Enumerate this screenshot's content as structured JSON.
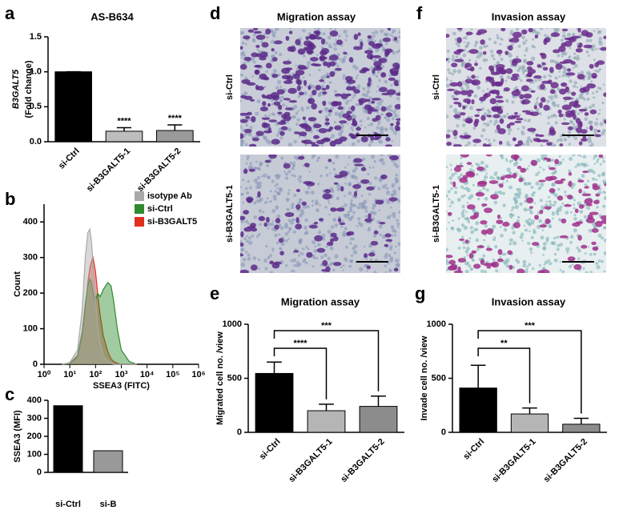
{
  "chart_data": [
    {
      "type": "bar",
      "panel": "a",
      "title": "AS-B634",
      "ylabel": [
        "B3GALT5",
        "(Fold change)"
      ],
      "categories": [
        "si-Ctrl",
        "si-B3GALT5-1",
        "si-B3GALT5-2"
      ],
      "values": [
        1.0,
        0.15,
        0.16
      ],
      "errors": [
        0,
        0.05,
        0.08
      ],
      "colors": [
        "#000000",
        "#bdbdbd",
        "#9a9a9a"
      ],
      "annotations": [
        null,
        "****",
        "****"
      ],
      "annotation_style": "above",
      "ylim": [
        0,
        1.5
      ],
      "yticks": [
        {
          "value": 0,
          "label": "0.0"
        },
        {
          "value": 0.5,
          "label": "0.5"
        },
        {
          "value": 1,
          "label": "1.0"
        },
        {
          "value": 1.5,
          "label": "1.5"
        }
      ],
      "category_label_rotation": -45
    },
    {
      "type": "histogram",
      "panel": "b",
      "xlabel": "SSEA3 (FITC)",
      "ylabel": "Count",
      "xscale": "log",
      "legend": "upper right",
      "x": [
        5,
        10,
        20,
        30,
        40,
        50,
        60,
        70,
        80,
        100,
        120,
        150,
        200,
        300,
        400,
        500,
        700,
        1000,
        2000,
        4000
      ],
      "series": [
        {
          "name": "isotype Ab",
          "color": "#a8a8a8",
          "values": [
            0,
            5,
            40,
            150,
            300,
            370,
            380,
            340,
            280,
            180,
            110,
            60,
            25,
            8,
            3,
            0,
            0,
            0,
            0,
            0
          ]
        },
        {
          "name": "si-Ctrl",
          "color": "#2e8b2e",
          "values": [
            0,
            3,
            25,
            90,
            170,
            220,
            240,
            230,
            200,
            180,
            200,
            190,
            210,
            230,
            220,
            180,
            100,
            40,
            8,
            0
          ]
        },
        {
          "name": "si-B3GALT5",
          "color": "#e03020",
          "values": [
            0,
            2,
            20,
            80,
            160,
            230,
            270,
            290,
            300,
            260,
            200,
            140,
            80,
            35,
            15,
            8,
            3,
            0,
            0,
            0
          ]
        }
      ],
      "xlim": [
        1,
        1000000
      ],
      "xticks": [
        {
          "value": 1,
          "label": "10⁰"
        },
        {
          "value": 10,
          "label": "10¹"
        },
        {
          "value": 100,
          "label": "10²"
        },
        {
          "value": 1000,
          "label": "10³"
        },
        {
          "value": 10000,
          "label": "10⁴"
        },
        {
          "value": 100000,
          "label": "10⁵"
        },
        {
          "value": 1000000,
          "label": "10⁶"
        }
      ],
      "ylim": [
        0,
        450
      ],
      "yticks": [
        0,
        100,
        200,
        300,
        400
      ]
    },
    {
      "type": "bar",
      "panel": "c",
      "ylabel": [
        "SSEA3 (MFI)"
      ],
      "categories": [
        "si-Ctrl",
        "si-B"
      ],
      "values": [
        370,
        120
      ],
      "colors": [
        "#000000",
        "#999999"
      ],
      "ylim": [
        0,
        400
      ],
      "yticks": [
        0,
        100,
        200,
        300,
        400
      ],
      "category_label_rotation": 0
    },
    {
      "type": "bar",
      "panel": "e",
      "title": "Migration assay",
      "ylabel": [
        "Migrated cell no. /view"
      ],
      "categories": [
        "si-Ctrl",
        "si-B3GALT5-1",
        "si-B3GALT5-2"
      ],
      "values": [
        545,
        200,
        240
      ],
      "errors": [
        105,
        60,
        95
      ],
      "colors": [
        "#000000",
        "#b5b5b5",
        "#8c8c8c"
      ],
      "annotations": [
        null,
        "****",
        "***"
      ],
      "annotation_style": "bracket",
      "ylim": [
        0,
        1000
      ],
      "yticks": [
        0,
        500,
        1000
      ],
      "category_label_rotation": -45
    },
    {
      "type": "bar",
      "panel": "g",
      "title": "Invasion assay",
      "ylabel": [
        "Invade cell no. /view"
      ],
      "categories": [
        "si-Ctrl",
        "si-B3GALT5-1",
        "si-B3GALT5-2"
      ],
      "values": [
        410,
        170,
        75
      ],
      "errors": [
        210,
        55,
        55
      ],
      "colors": [
        "#000000",
        "#b5b5b5",
        "#8c8c8c"
      ],
      "annotations": [
        null,
        "**",
        "***"
      ],
      "annotation_style": "bracket",
      "ylim": [
        0,
        1000
      ],
      "yticks": [
        0,
        500,
        1000
      ],
      "category_label_rotation": -45
    }
  ],
  "micrographs": [
    {
      "panel": "d",
      "title": "Migration assay",
      "rows": [
        "si-Ctrl",
        "si-B3GALT5-1"
      ]
    },
    {
      "panel": "f",
      "title": "Invasion assay",
      "rows": [
        "si-Ctrl",
        "si-B3GALT5-1"
      ]
    }
  ]
}
